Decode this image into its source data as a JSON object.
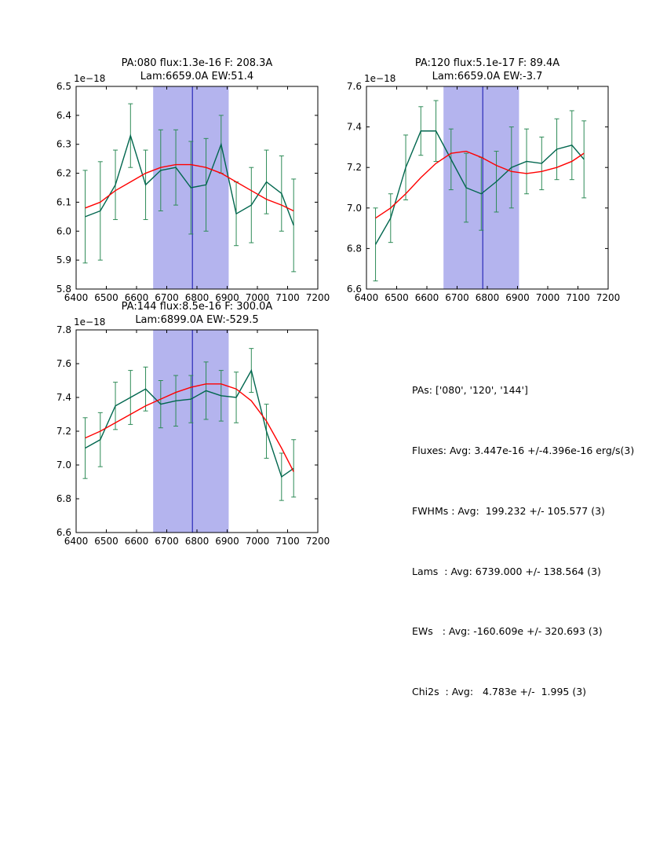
{
  "window": {
    "background": "#ffffff"
  },
  "colors": {
    "band": "#b4b4ee",
    "vline": "#2a2ab8",
    "data": "#00664e",
    "errorbar": "#2e8b57",
    "fit": "#ff0000",
    "axis": "#000000"
  },
  "summary": {
    "lines": [
      "PAs: ['080', '120', '144']",
      "Fluxes: Avg: 3.447e-16 +/-4.396e-16 erg/s(3)",
      "FWHMs : Avg:  199.232 +/- 105.577 (3)",
      "Lams  : Avg: 6739.000 +/- 138.564 (3)",
      "EWs   : Avg: -160.609e +/- 320.693 (3)",
      "Chi2s  : Avg:   4.783e +/-  1.995 (3)"
    ]
  },
  "chart_data": [
    {
      "type": "line",
      "title": "PA:080 flux:1.3e-16 F: 208.3A",
      "subtitle": "Lam:6659.0A EW:51.4",
      "offset_label": "1e−18",
      "xlim": [
        6400,
        7200
      ],
      "ylim": [
        5.8,
        6.5
      ],
      "xticks": [
        6400,
        6500,
        6600,
        6700,
        6800,
        6900,
        7000,
        7100,
        7200
      ],
      "yticks": [
        5.8,
        5.9,
        6.0,
        6.1,
        6.2,
        6.3,
        6.4,
        6.5
      ],
      "band": [
        6655,
        6905
      ],
      "vline": 6785,
      "grid": false,
      "series": [
        {
          "name": "spectrum",
          "x": [
            6430,
            6480,
            6530,
            6580,
            6630,
            6680,
            6730,
            6780,
            6830,
            6880,
            6930,
            6980,
            7030,
            7080,
            7120
          ],
          "y": [
            6.05,
            6.07,
            6.16,
            6.33,
            6.16,
            6.21,
            6.22,
            6.15,
            6.16,
            6.3,
            6.06,
            6.09,
            6.17,
            6.13,
            6.02
          ],
          "yerr": [
            0.16,
            0.17,
            0.12,
            0.11,
            0.12,
            0.14,
            0.13,
            0.16,
            0.16,
            0.1,
            0.11,
            0.13,
            0.11,
            0.13,
            0.16
          ]
        },
        {
          "name": "gaussian-fit",
          "x": [
            6430,
            6480,
            6530,
            6580,
            6630,
            6680,
            6730,
            6780,
            6830,
            6880,
            6930,
            6980,
            7030,
            7080,
            7120
          ],
          "y": [
            6.08,
            6.1,
            6.14,
            6.17,
            6.2,
            6.22,
            6.23,
            6.23,
            6.22,
            6.2,
            6.17,
            6.14,
            6.11,
            6.09,
            6.07
          ]
        }
      ]
    },
    {
      "type": "line",
      "title": "PA:120 flux:5.1e-17 F: 89.4A",
      "subtitle": "Lam:6659.0A EW:-3.7",
      "offset_label": "1e−18",
      "xlim": [
        6400,
        7200
      ],
      "ylim": [
        6.6,
        7.6
      ],
      "xticks": [
        6400,
        6500,
        6600,
        6700,
        6800,
        6900,
        7000,
        7100,
        7200
      ],
      "yticks": [
        6.6,
        6.8,
        7.0,
        7.2,
        7.4,
        7.6
      ],
      "band": [
        6655,
        6905
      ],
      "vline": 6785,
      "grid": false,
      "series": [
        {
          "name": "spectrum",
          "x": [
            6430,
            6480,
            6530,
            6580,
            6630,
            6680,
            6730,
            6780,
            6830,
            6880,
            6930,
            6980,
            7030,
            7080,
            7120
          ],
          "y": [
            6.82,
            6.95,
            7.2,
            7.38,
            7.38,
            7.24,
            7.1,
            7.07,
            7.13,
            7.2,
            7.23,
            7.22,
            7.29,
            7.31,
            7.24
          ],
          "yerr": [
            0.18,
            0.12,
            0.16,
            0.12,
            0.15,
            0.15,
            0.17,
            0.18,
            0.15,
            0.2,
            0.16,
            0.13,
            0.15,
            0.17,
            0.19
          ]
        },
        {
          "name": "gaussian-fit",
          "x": [
            6430,
            6480,
            6530,
            6580,
            6630,
            6680,
            6730,
            6780,
            6830,
            6880,
            6930,
            6980,
            7030,
            7080,
            7120
          ],
          "y": [
            6.95,
            7.0,
            7.07,
            7.15,
            7.22,
            7.27,
            7.28,
            7.25,
            7.21,
            7.18,
            7.17,
            7.18,
            7.2,
            7.23,
            7.27
          ]
        }
      ]
    },
    {
      "type": "line",
      "title": "PA:144 flux:8.5e-16 F: 300.0A",
      "subtitle": "Lam:6899.0A EW:-529.5",
      "offset_label": "1e−18",
      "xlim": [
        6400,
        7200
      ],
      "ylim": [
        6.6,
        7.8
      ],
      "xticks": [
        6400,
        6500,
        6600,
        6700,
        6800,
        6900,
        7000,
        7100,
        7200
      ],
      "yticks": [
        6.6,
        6.8,
        7.0,
        7.2,
        7.4,
        7.6,
        7.8
      ],
      "band": [
        6655,
        6905
      ],
      "vline": 6785,
      "grid": false,
      "series": [
        {
          "name": "spectrum",
          "x": [
            6430,
            6480,
            6530,
            6580,
            6630,
            6680,
            6730,
            6780,
            6830,
            6880,
            6930,
            6980,
            7030,
            7080,
            7120
          ],
          "y": [
            7.1,
            7.15,
            7.35,
            7.4,
            7.45,
            7.36,
            7.38,
            7.39,
            7.44,
            7.41,
            7.4,
            7.56,
            7.2,
            6.93,
            6.98
          ],
          "yerr": [
            0.18,
            0.16,
            0.14,
            0.16,
            0.13,
            0.14,
            0.15,
            0.14,
            0.17,
            0.15,
            0.15,
            0.13,
            0.16,
            0.14,
            0.17
          ]
        },
        {
          "name": "gaussian-fit",
          "x": [
            6430,
            6480,
            6530,
            6580,
            6630,
            6680,
            6730,
            6780,
            6830,
            6880,
            6930,
            6980,
            7030,
            7080,
            7120
          ],
          "y": [
            7.16,
            7.2,
            7.25,
            7.3,
            7.35,
            7.39,
            7.43,
            7.46,
            7.48,
            7.48,
            7.45,
            7.38,
            7.26,
            7.1,
            6.96
          ]
        }
      ]
    }
  ]
}
